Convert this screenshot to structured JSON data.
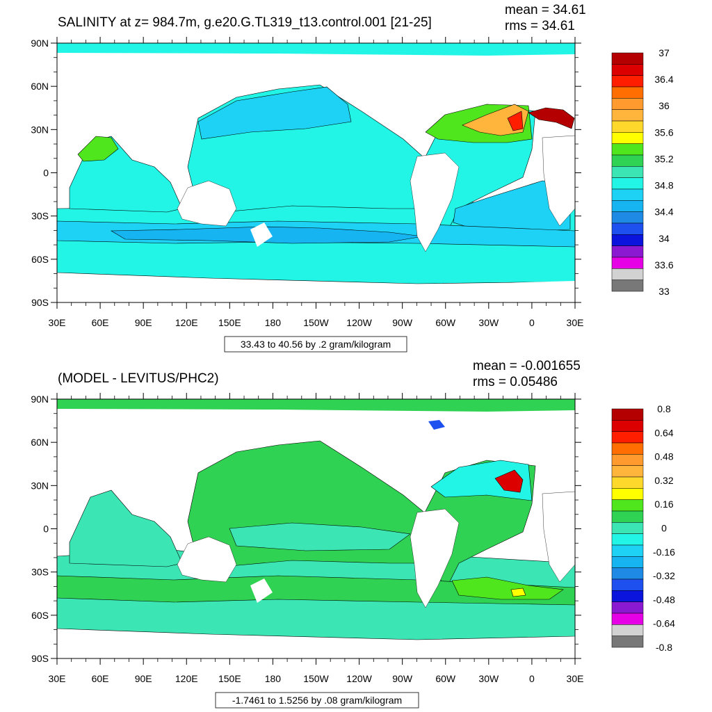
{
  "panels": [
    {
      "title": "SALINITY at z= 984.7m, g.e20.G.TL319_t13.control.001 [21-25]",
      "mean_label": "mean = 34.61",
      "rms_label": "rms = 34.61",
      "range_label": "33.43 to 40.56 by .2 gram/kilogram",
      "y_ticks": [
        "90N",
        "60N",
        "30N",
        "0",
        "30S",
        "60S",
        "90S"
      ],
      "x_ticks": [
        "30E",
        "60E",
        "90E",
        "120E",
        "150E",
        "180",
        "150W",
        "120W",
        "90W",
        "60W",
        "30W",
        "0",
        "30E"
      ],
      "colorbar_labels": [
        "37",
        "36.4",
        "36",
        "35.6",
        "35.2",
        "34.8",
        "34.4",
        "34",
        "33.6",
        "33"
      ],
      "colorbar_colors": [
        "#b40000",
        "#dc0000",
        "#ff1e00",
        "#ff6e00",
        "#ff9a2e",
        "#ffb43c",
        "#ffd82c",
        "#ffff00",
        "#50e61e",
        "#2fd252",
        "#3ce6b4",
        "#22f5e6",
        "#1ed2f5",
        "#16b4f0",
        "#1e8ae6",
        "#1e50f0",
        "#0a14dc",
        "#8c19d2",
        "#e600e6",
        "#d2d2d2",
        "#787878"
      ]
    },
    {
      "title": "(MODEL - LEVITUS/PHC2)",
      "mean_label": "mean = -0.001655",
      "rms_label": "rms = 0.05486",
      "range_label": "-1.7461 to 1.5256 by .08 gram/kilogram",
      "y_ticks": [
        "90N",
        "60N",
        "30N",
        "0",
        "30S",
        "60S",
        "90S"
      ],
      "x_ticks": [
        "30E",
        "60E",
        "90E",
        "120E",
        "150E",
        "180",
        "150W",
        "120W",
        "90W",
        "60W",
        "30W",
        "0",
        "30E"
      ],
      "colorbar_labels": [
        "0.8",
        "0.64",
        "0.48",
        "0.32",
        "0.16",
        "0",
        "-0.16",
        "-0.32",
        "-0.48",
        "-0.64",
        "-0.8"
      ],
      "colorbar_colors": [
        "#b40000",
        "#dc0000",
        "#ff1e00",
        "#ff6e00",
        "#ff9a2e",
        "#ffb43c",
        "#ffd82c",
        "#ffff00",
        "#50e61e",
        "#2fd252",
        "#3ce6b4",
        "#22f5e6",
        "#1ed2f5",
        "#16b4f0",
        "#1e8ae6",
        "#1e50f0",
        "#0a14dc",
        "#8c19d2",
        "#e600e6",
        "#d2d2d2",
        "#787878"
      ]
    }
  ],
  "chart_data": [
    {
      "type": "heatmap",
      "title": "SALINITY at z= 984.7m, g.e20.G.TL319_t13.control.001 [21-25]",
      "variable": "salinity",
      "units": "gram/kilogram",
      "mean": 34.61,
      "rms": 34.61,
      "range": [
        33.43,
        40.56
      ],
      "contour_interval": 0.2,
      "x_range": [
        "30E",
        "30E"
      ],
      "y_range": [
        "90S",
        "90N"
      ],
      "colorbar_range": [
        33,
        37
      ]
    },
    {
      "type": "heatmap",
      "title": "(MODEL - LEVITUS/PHC2)",
      "variable": "salinity difference",
      "units": "gram/kilogram",
      "mean": -0.001655,
      "rms": 0.05486,
      "range": [
        -1.7461,
        1.5256
      ],
      "contour_interval": 0.08,
      "x_range": [
        "30E",
        "30E"
      ],
      "y_range": [
        "90S",
        "90N"
      ],
      "colorbar_range": [
        -0.8,
        0.8
      ]
    }
  ]
}
